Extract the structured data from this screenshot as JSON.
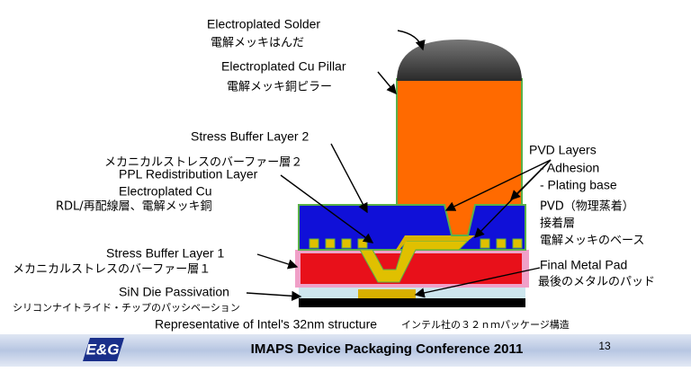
{
  "labels": {
    "solder_en": "Electroplated Solder",
    "solder_jp": "電解メッキはんだ",
    "pillar_en": "Electroplated Cu Pillar",
    "pillar_jp": "電解メッキ銅ピラー",
    "sbl2_en": "Stress Buffer Layer 2",
    "sbl2_jp": "メカニカルストレスのバーファー層２",
    "rdl_en_1": "PPL Redistribution Layer",
    "rdl_en_2": "Electroplated Cu",
    "rdl_jp": "RDL/再配線層、電解メッキ銅",
    "pvd_en_1": "PVD Layers",
    "pvd_en_2": "- Adhesion",
    "pvd_en_3": "- Plating base",
    "pvd_jp_1": "PVD（物理蒸着）",
    "pvd_jp_2": "接着層",
    "pvd_jp_3": "電解メッキのベース",
    "sbl1_en": "Stress Buffer Layer 1",
    "sbl1_jp": "メカニカルストレスのバーファー層１",
    "pad_en": "Final Metal Pad",
    "pad_jp": "最後のメタルのパッド",
    "sin_en": "SiN Die Passivation",
    "sin_jp": "シリコンナイトライド・チップのパッシベーション",
    "caption_en": "Representative of Intel's 32nm structure",
    "caption_jp": "インテル社の３２ｎｍパッケージ構造"
  },
  "footer": {
    "logo": "E&G",
    "title": "IMAPS Device Packaging Conference 2011",
    "page": "13"
  }
}
